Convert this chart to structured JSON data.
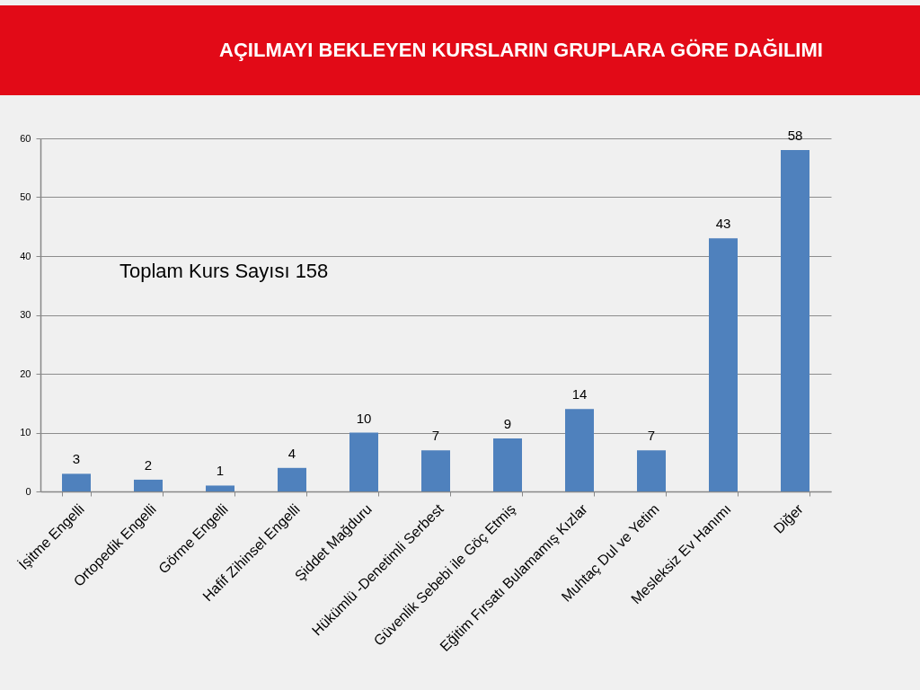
{
  "chart_data": {
    "type": "bar",
    "title": "AÇILMAYI BEKLEYEN KURSLARIN GRUPLARA GÖRE DAĞILIMI",
    "categories": [
      "İşitme Engelli",
      "Ortopedik Engelli",
      "Görme Engelli",
      "Hafif Zihinsel Engelli",
      "Şiddet Mağduru",
      "Hükümlü -Denetimli Serbest",
      "Güvenlik Sebebi ile  Göç Etmiş",
      "Eğitim  Fırsatı Bulamamış Kızlar",
      "Muhtaç Dul ve Yetim",
      "Mesleksiz  Ev Hanımı",
      "Diğer"
    ],
    "values": [
      3,
      2,
      1,
      4,
      10,
      7,
      9,
      14,
      7,
      43,
      58
    ],
    "color": "#4f81bd",
    "ylim": [
      0,
      60
    ],
    "yticks": [
      0,
      10,
      20,
      30,
      40,
      50,
      60
    ],
    "grid": "y",
    "data_labels": true,
    "annotations": [
      "Toplam  Kurs  Sayısı 158"
    ]
  }
}
